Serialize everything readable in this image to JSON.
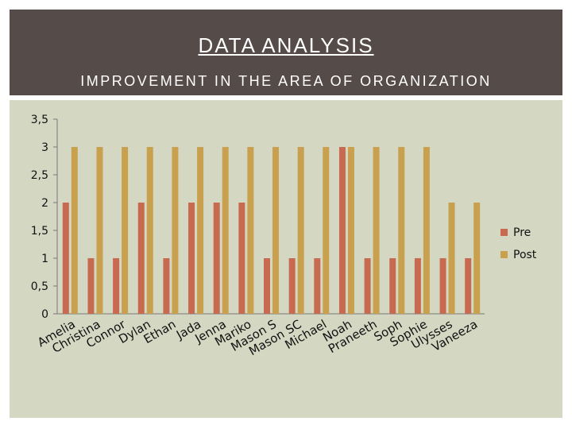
{
  "slide": {
    "title": "DATA ANALYSIS",
    "subtitle": "IMPROVEMENT IN THE AREA OF ORGANIZATION"
  },
  "colors": {
    "pre": "#c86a50",
    "post": "#c9a04e"
  },
  "chart_data": {
    "type": "bar",
    "categories": [
      "Amelia",
      "Christina",
      "Connor",
      "Dylan",
      "Ethan",
      "Jada",
      "Jenna",
      "Mariko",
      "Mason S",
      "Mason SC",
      "Michael",
      "Noah",
      "Praneeth",
      "Soph",
      "Sophie",
      "Ulysses",
      "Vaneeza"
    ],
    "series": [
      {
        "name": "Pre",
        "values": [
          2,
          1,
          1,
          2,
          1,
          2,
          2,
          2,
          1,
          1,
          1,
          3,
          1,
          1,
          1,
          1,
          1
        ]
      },
      {
        "name": "Post",
        "values": [
          3,
          3,
          3,
          3,
          3,
          3,
          3,
          3,
          3,
          3,
          3,
          3,
          3,
          3,
          3,
          2,
          2
        ]
      }
    ],
    "ylim": [
      0,
      3.5
    ],
    "yticks": [
      "0",
      "0,5",
      "1",
      "1,5",
      "2",
      "2,5",
      "3",
      "3,5"
    ],
    "legend": "right",
    "grid": false
  }
}
